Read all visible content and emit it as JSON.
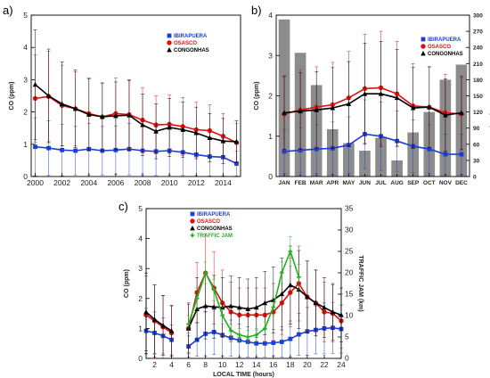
{
  "chart_data": [
    {
      "panel": "a)",
      "type": "line",
      "ylabel": "CO (ppm)",
      "xlim": [
        1999.7,
        2015.3
      ],
      "ylim": [
        0,
        5
      ],
      "yticks": [
        0,
        1,
        2,
        3,
        4,
        5
      ],
      "xticks": [
        2000,
        2002,
        2004,
        2006,
        2008,
        2010,
        2012,
        2014
      ],
      "legend_position": "top-right",
      "x": [
        2000,
        2001,
        2002,
        2003,
        2004,
        2005,
        2006,
        2007,
        2008,
        2009,
        2010,
        2011,
        2012,
        2013,
        2014,
        2015
      ],
      "series": [
        {
          "name": "IBIRAPUERA",
          "color": "#1a3fd6",
          "marker": "square",
          "values": [
            0.92,
            0.88,
            0.82,
            0.8,
            0.85,
            0.8,
            0.82,
            0.85,
            0.8,
            0.78,
            0.8,
            0.75,
            0.68,
            0.62,
            0.6,
            0.4
          ],
          "err": [
            0.9,
            0.85,
            0.8,
            0.75,
            0.8,
            0.75,
            0.75,
            0.8,
            0.75,
            0.75,
            0.75,
            0.72,
            0.65,
            0.6,
            0.58,
            0.38
          ]
        },
        {
          "name": "OSASCO",
          "color": "#e01010",
          "marker": "circle",
          "values": [
            2.42,
            2.48,
            2.2,
            2.1,
            1.95,
            1.85,
            1.95,
            1.92,
            1.75,
            1.6,
            1.62,
            1.55,
            1.45,
            1.42,
            1.25,
            1.05
          ],
          "err": [
            1.35,
            1.4,
            1.25,
            1.15,
            1.1,
            1.05,
            1.1,
            1.05,
            1.0,
            0.9,
            0.9,
            0.9,
            0.85,
            0.8,
            0.7,
            0.6
          ]
        },
        {
          "name": "CONGONHAS",
          "color": "#000000",
          "marker": "triangle",
          "values": [
            2.85,
            2.5,
            2.25,
            2.1,
            1.92,
            1.85,
            1.88,
            1.9,
            1.6,
            1.4,
            1.52,
            1.45,
            1.35,
            1.2,
            1.1,
            1.08
          ],
          "err": [
            1.7,
            1.45,
            1.3,
            1.2,
            1.1,
            1.05,
            1.05,
            1.1,
            0.95,
            0.85,
            0.9,
            0.85,
            0.8,
            0.75,
            0.7,
            0.65
          ]
        }
      ]
    },
    {
      "panel": "b)",
      "type": "bar+line",
      "ylabel": "CO (ppm)",
      "y2label": "PRECIPITATION (mm)",
      "ylim": [
        0,
        4
      ],
      "yticks": [
        0,
        1,
        2,
        3,
        4
      ],
      "y2lim": [
        0,
        300
      ],
      "y2ticks": [
        0,
        30,
        60,
        90,
        120,
        150,
        180,
        210,
        240,
        270,
        300
      ],
      "categories": [
        "JAN",
        "FEB",
        "MAR",
        "APR",
        "MAY",
        "JUN",
        "JUL",
        "AUG",
        "SEP",
        "OCT",
        "NOV",
        "DEC"
      ],
      "precipitation": [
        292,
        230,
        170,
        88,
        62,
        48,
        72,
        30,
        82,
        120,
        180,
        208
      ],
      "bar_color": "#8c8c8c",
      "legend_position": "top-right",
      "series": [
        {
          "name": "IBIRAPUERA",
          "color": "#1a3fd6",
          "marker": "square",
          "values": [
            0.62,
            0.65,
            0.68,
            0.7,
            0.78,
            1.05,
            1.0,
            0.88,
            0.75,
            0.68,
            0.55,
            0.55
          ],
          "err": [
            0.55,
            0.55,
            0.6,
            0.65,
            0.7,
            0.85,
            0.85,
            0.75,
            0.65,
            0.6,
            0.5,
            0.5
          ]
        },
        {
          "name": "OSASCO",
          "color": "#e01010",
          "marker": "circle",
          "values": [
            1.55,
            1.65,
            1.72,
            1.78,
            1.95,
            2.18,
            2.2,
            2.05,
            1.75,
            1.72,
            1.58,
            1.55
          ],
          "err": [
            0.95,
            1.0,
            1.0,
            1.05,
            1.15,
            1.35,
            1.4,
            1.3,
            1.05,
            1.0,
            0.95,
            0.9
          ]
        },
        {
          "name": "CONGONHAS",
          "color": "#000000",
          "marker": "triangle",
          "values": [
            1.58,
            1.62,
            1.65,
            1.7,
            1.8,
            2.05,
            2.05,
            1.95,
            1.7,
            1.72,
            1.52,
            1.58
          ],
          "err": [
            0.9,
            0.95,
            0.95,
            1.0,
            1.05,
            1.25,
            1.3,
            1.2,
            1.0,
            1.0,
            0.9,
            0.9
          ]
        }
      ]
    },
    {
      "panel": "c)",
      "type": "line",
      "xlabel": "LOCAL TIME (hours)",
      "ylabel": "CO (ppm)",
      "y2label": "TRAFFIC JAM (km)",
      "xlim": [
        1,
        24
      ],
      "xticks": [
        2,
        4,
        6,
        8,
        10,
        12,
        14,
        16,
        18,
        20,
        22,
        24
      ],
      "ylim": [
        0,
        5
      ],
      "yticks": [
        0,
        1,
        2,
        3,
        4,
        5
      ],
      "y2lim": [
        0,
        35
      ],
      "y2ticks": [
        0,
        5,
        10,
        15,
        20,
        25,
        30,
        35
      ],
      "legend_position": "top-left",
      "x": [
        1,
        2,
        3,
        4,
        6,
        7,
        8,
        9,
        10,
        11,
        12,
        13,
        14,
        15,
        16,
        17,
        18,
        19,
        20,
        21,
        22,
        23,
        24
      ],
      "gap_after_x": 4,
      "series": [
        {
          "name": "IBIRAPUERA",
          "color": "#1a3fd6",
          "marker": "square",
          "axis": "left",
          "values": [
            0.92,
            0.85,
            0.75,
            0.62,
            0.4,
            0.62,
            0.82,
            0.88,
            0.78,
            0.68,
            0.6,
            0.55,
            0.5,
            0.5,
            0.52,
            0.55,
            0.65,
            0.8,
            0.9,
            0.95,
            1.0,
            1.02,
            0.98
          ],
          "err": [
            0.75,
            0.7,
            0.6,
            0.5,
            0.35,
            0.55,
            0.75,
            0.75,
            0.7,
            0.6,
            0.55,
            0.5,
            0.45,
            0.45,
            0.45,
            0.5,
            0.6,
            0.7,
            0.8,
            0.8,
            0.85,
            0.85,
            0.8
          ]
        },
        {
          "name": "OSASCO",
          "color": "#e01010",
          "marker": "circle",
          "axis": "left",
          "values": [
            1.45,
            1.25,
            1.05,
            0.85,
            1.0,
            2.2,
            2.85,
            2.35,
            1.85,
            1.55,
            1.45,
            1.45,
            1.45,
            1.45,
            1.55,
            1.85,
            2.2,
            2.5,
            2.05,
            1.85,
            1.55,
            1.5,
            1.25
          ],
          "err": [
            1.3,
            1.2,
            1.05,
            0.9,
            0.8,
            1.0,
            1.3,
            1.2,
            1.1,
            1.0,
            0.9,
            0.9,
            0.9,
            0.9,
            0.95,
            1.05,
            1.15,
            1.25,
            1.2,
            1.1,
            1.0,
            0.95,
            0.9
          ]
        },
        {
          "name": "CONGONHAS",
          "color": "#000000",
          "marker": "triangle",
          "axis": "left",
          "values": [
            1.55,
            1.3,
            1.1,
            0.92,
            1.0,
            1.65,
            1.75,
            1.72,
            1.7,
            1.75,
            1.7,
            1.65,
            1.7,
            1.85,
            1.95,
            2.15,
            2.45,
            2.3,
            2.05,
            1.85,
            1.7,
            1.55,
            1.45
          ],
          "err": [
            1.3,
            1.15,
            1.0,
            0.85,
            0.85,
            1.05,
            1.1,
            1.05,
            1.0,
            1.0,
            1.0,
            1.0,
            1.0,
            1.05,
            1.1,
            1.2,
            1.3,
            1.3,
            1.2,
            1.1,
            1.0,
            0.95,
            0.9
          ]
        },
        {
          "name": "TRAFFIC JAM",
          "color": "#22b022",
          "marker": "cross",
          "axis": "right",
          "values": [
            null,
            null,
            null,
            null,
            8.0,
            14.0,
            20.0,
            16.0,
            10.0,
            6.5,
            5.5,
            5.0,
            5.5,
            7.0,
            12.0,
            20.0,
            25.0,
            19.0,
            null,
            null,
            null,
            null,
            null
          ],
          "err": [
            null,
            null,
            null,
            null,
            2.0,
            2.5,
            2.5,
            2.5,
            2.0,
            1.5,
            1.5,
            1.5,
            1.5,
            1.5,
            2.0,
            2.5,
            3.5,
            3.0,
            null,
            null,
            null,
            null,
            null
          ]
        }
      ]
    }
  ]
}
